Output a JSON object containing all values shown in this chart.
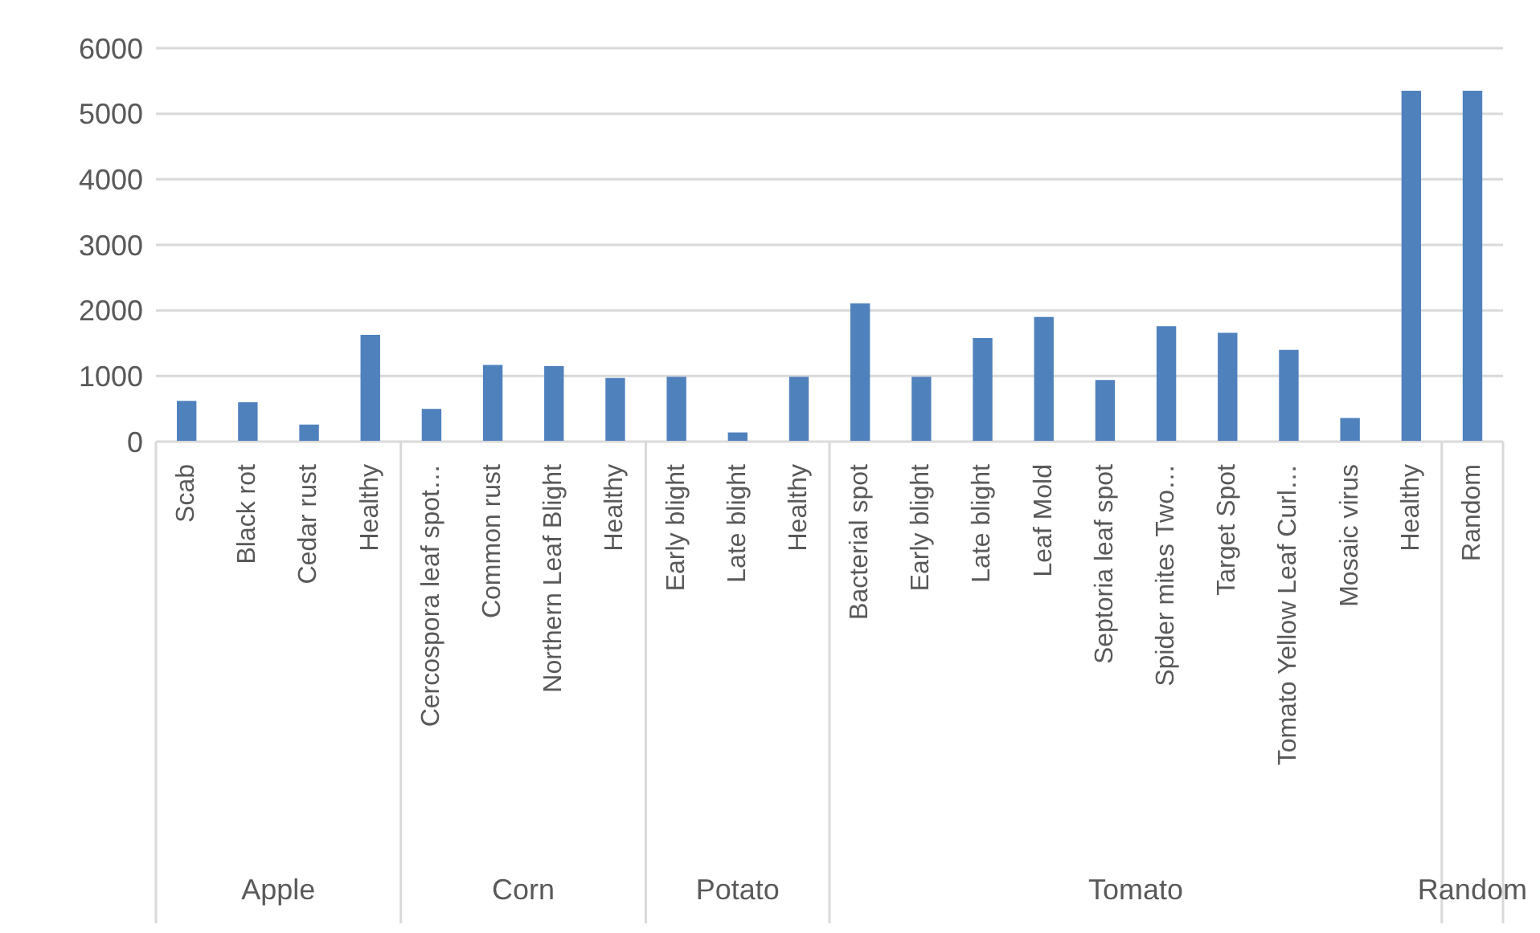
{
  "chart_data": {
    "type": "bar",
    "categories": [
      "Scab",
      "Black rot",
      "Cedar rust",
      "Healthy",
      "Cercospora leaf spot…",
      "Common rust",
      "Northern Leaf Blight",
      "Healthy",
      "Early blight",
      "Late blight",
      "Healthy",
      "Bacterial spot",
      "Early blight",
      "Late blight",
      "Leaf Mold",
      "Septoria leaf spot",
      "Spider mites Two…",
      "Target Spot",
      "Tomato Yellow Leaf Curl…",
      "Mosaic virus",
      "Healthy",
      "Random"
    ],
    "values": [
      620,
      600,
      260,
      1630,
      500,
      1170,
      1150,
      970,
      990,
      140,
      990,
      2110,
      990,
      1580,
      1900,
      940,
      1760,
      1660,
      1400,
      360,
      5350,
      5350
    ],
    "color": "#4f81bd",
    "annotations": [
      "Apple",
      "Corn",
      "Potato",
      "Tomato",
      "Random"
    ],
    "ylim": [
      0,
      6000
    ],
    "yticks": [
      0,
      1000,
      2000,
      3000,
      4000,
      5000,
      6000
    ],
    "grid": "y"
  }
}
